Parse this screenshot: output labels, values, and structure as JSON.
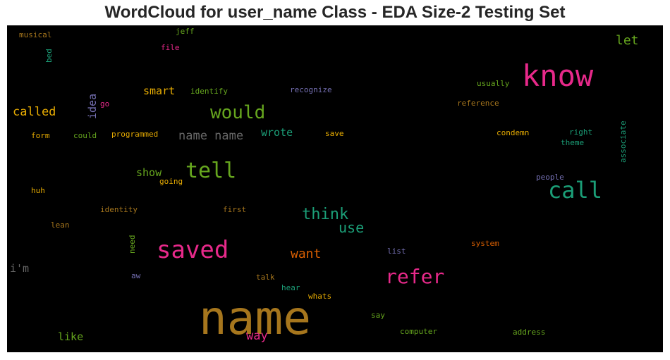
{
  "title": "WordCloud for user_name Class - EDA Size-2 Testing Set",
  "chart_data": {
    "type": "wordcloud",
    "background": "#000000",
    "words": [
      {
        "text": "name",
        "color": "#a6761d"
      },
      {
        "text": "know",
        "color": "#e7298a"
      },
      {
        "text": "saved",
        "color": "#e7298a"
      },
      {
        "text": "call",
        "color": "#1b9e77"
      },
      {
        "text": "tell",
        "color": "#66a61e"
      },
      {
        "text": "refer",
        "color": "#e7298a"
      },
      {
        "text": "would",
        "color": "#66a61e"
      },
      {
        "text": "think",
        "color": "#1b9e77"
      },
      {
        "text": "use",
        "color": "#1b9e77"
      },
      {
        "text": "want",
        "color": "#d95f02"
      },
      {
        "text": "way",
        "color": "#e7298a"
      },
      {
        "text": "name name",
        "color": "#666666"
      },
      {
        "text": "called",
        "color": "#e6ab02"
      },
      {
        "text": "let",
        "color": "#66a61e"
      },
      {
        "text": "wrote",
        "color": "#1b9e77"
      },
      {
        "text": "smart",
        "color": "#e6ab02"
      },
      {
        "text": "idea",
        "color": "#7570b3"
      },
      {
        "text": "like",
        "color": "#66a61e"
      },
      {
        "text": "show",
        "color": "#66a61e"
      },
      {
        "text": "i'm",
        "color": "#666666"
      },
      {
        "text": "usually",
        "color": "#66a61e"
      },
      {
        "text": "reference",
        "color": "#a6761d"
      },
      {
        "text": "condemn",
        "color": "#e6ab02"
      },
      {
        "text": "right",
        "color": "#1b9e77"
      },
      {
        "text": "theme",
        "color": "#1b9e77"
      },
      {
        "text": "associate",
        "color": "#1b9e77"
      },
      {
        "text": "people",
        "color": "#7570b3"
      },
      {
        "text": "recognize",
        "color": "#7570b3"
      },
      {
        "text": "identify",
        "color": "#66a61e"
      },
      {
        "text": "programmed",
        "color": "#e6ab02"
      },
      {
        "text": "save",
        "color": "#e6ab02"
      },
      {
        "text": "could",
        "color": "#66a61e"
      },
      {
        "text": "form",
        "color": "#e6ab02"
      },
      {
        "text": "going",
        "color": "#e6ab02"
      },
      {
        "text": "huh",
        "color": "#e6ab02"
      },
      {
        "text": "identity",
        "color": "#a6761d"
      },
      {
        "text": "first",
        "color": "#a6761d"
      },
      {
        "text": "lean",
        "color": "#a6761d"
      },
      {
        "text": "need",
        "color": "#66a61e"
      },
      {
        "text": "list",
        "color": "#7570b3"
      },
      {
        "text": "system",
        "color": "#d95f02"
      },
      {
        "text": "aw",
        "color": "#7570b3"
      },
      {
        "text": "talk",
        "color": "#a6761d"
      },
      {
        "text": "hear",
        "color": "#1b9e77"
      },
      {
        "text": "whats",
        "color": "#e6ab02"
      },
      {
        "text": "say",
        "color": "#66a61e"
      },
      {
        "text": "computer",
        "color": "#66a61e"
      },
      {
        "text": "address",
        "color": "#66a61e"
      },
      {
        "text": "musical",
        "color": "#a6761d"
      },
      {
        "text": "jeff",
        "color": "#66a61e"
      },
      {
        "text": "file",
        "color": "#e7298a"
      },
      {
        "text": "bed",
        "color": "#1b9e77"
      },
      {
        "text": "go",
        "color": "#e7298a"
      }
    ]
  }
}
